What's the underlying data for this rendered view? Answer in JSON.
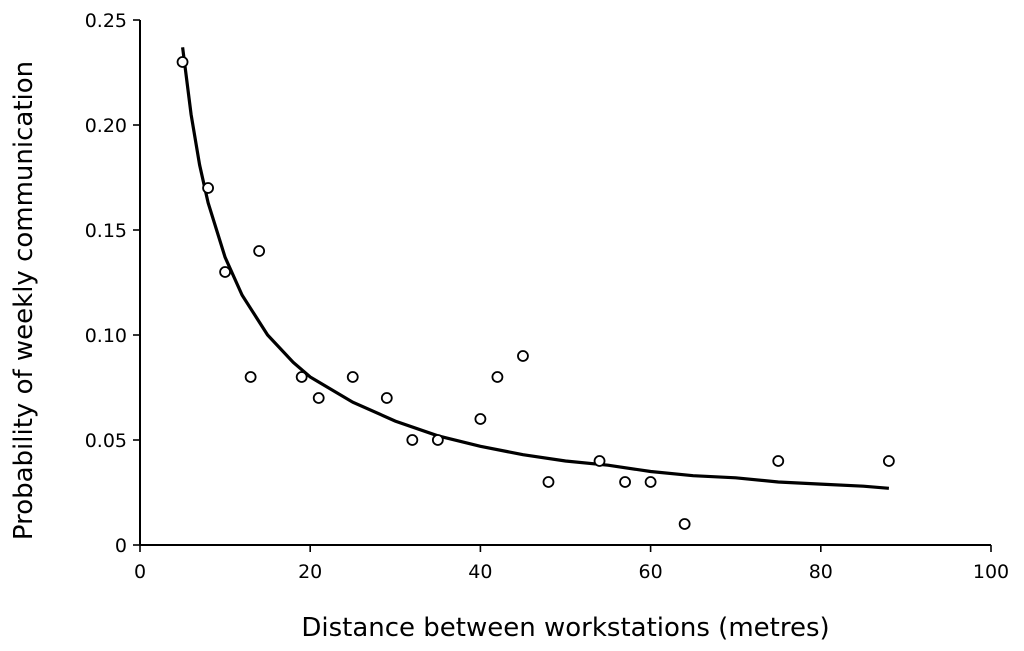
{
  "chart_data": {
    "type": "scatter",
    "title": "",
    "xlabel": "Distance between workstations (metres)",
    "ylabel": "Probability of weekly communication",
    "xlim": [
      0,
      100
    ],
    "ylim": [
      0,
      0.25
    ],
    "x_ticks": [
      0,
      20,
      40,
      60,
      80,
      100
    ],
    "x_tick_labels": [
      "0",
      "20",
      "40",
      "60",
      "80",
      "100"
    ],
    "y_ticks": [
      0,
      0.05,
      0.1,
      0.15,
      0.2,
      0.25
    ],
    "y_tick_labels": [
      "0",
      "0.05",
      "0.10",
      "0.15",
      "0.20",
      "0.25"
    ],
    "grid": false,
    "series": [
      {
        "type": "scatter",
        "x": [
          5,
          8,
          10,
          13,
          14,
          19,
          21,
          25,
          29,
          32,
          35,
          40,
          42,
          45,
          48,
          54,
          57,
          60,
          64,
          75,
          88
        ],
        "y": [
          0.23,
          0.17,
          0.13,
          0.08,
          0.14,
          0.08,
          0.07,
          0.08,
          0.07,
          0.05,
          0.05,
          0.06,
          0.08,
          0.09,
          0.03,
          0.04,
          0.03,
          0.03,
          0.01,
          0.04,
          0.04
        ]
      },
      {
        "type": "line",
        "x": [
          5,
          6,
          7,
          8,
          10,
          12,
          15,
          18,
          20,
          25,
          30,
          35,
          40,
          45,
          50,
          55,
          60,
          65,
          70,
          75,
          80,
          85,
          88
        ],
        "y": [
          0.237,
          0.205,
          0.181,
          0.163,
          0.137,
          0.119,
          0.1,
          0.087,
          0.08,
          0.068,
          0.059,
          0.052,
          0.047,
          0.043,
          0.04,
          0.038,
          0.035,
          0.033,
          0.032,
          0.03,
          0.029,
          0.028,
          0.027
        ]
      }
    ]
  }
}
